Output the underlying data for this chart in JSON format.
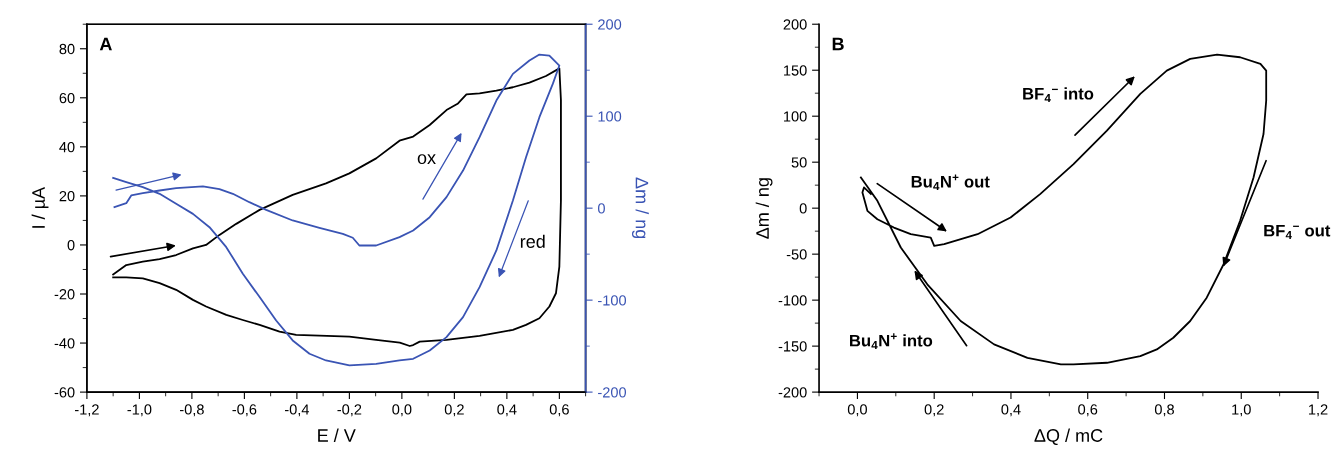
{
  "chart_data": [
    {
      "type": "line",
      "title": "A",
      "xlabel": "E / V",
      "ylabel": "I / µA",
      "y2label": "Δm / ng",
      "xlim": [
        -1.2,
        0.7
      ],
      "xticks": [
        {
          "value": -1.2,
          "label": "-1,2"
        },
        {
          "value": -1.0,
          "label": "-1,0"
        },
        {
          "value": -0.8,
          "label": "-0,8"
        },
        {
          "value": -0.6,
          "label": "-0,6"
        },
        {
          "value": -0.4,
          "label": "-0,4"
        },
        {
          "value": -0.2,
          "label": "-0,2"
        },
        {
          "value": 0.0,
          "label": "0,0"
        },
        {
          "value": 0.2,
          "label": "0,2"
        },
        {
          "value": 0.4,
          "label": "0,4"
        },
        {
          "value": 0.6,
          "label": "0,6"
        }
      ],
      "ylim": [
        -60,
        90
      ],
      "yticks": [
        -60,
        -40,
        -20,
        0,
        20,
        40,
        60,
        80
      ],
      "y2lim": [
        -200,
        200
      ],
      "y2ticks": [
        -200,
        -100,
        0,
        100,
        200
      ],
      "annotations": [
        "ox",
        "red"
      ],
      "series": [
        {
          "color": "#000000",
          "x": [
            -1.1,
            -1.05,
            -0.987,
            -0.923,
            -0.86,
            -0.796,
            -0.746,
            -0.695,
            -0.631,
            -0.542,
            -0.416,
            -0.289,
            -0.2,
            -0.098,
            -0.009,
            0.043,
            0.106,
            0.17,
            0.214,
            0.246,
            0.296,
            0.36,
            0.423,
            0.486,
            0.549,
            0.6,
            0.606,
            0.606,
            0.6,
            0.587,
            0.562,
            0.524,
            0.473,
            0.423,
            0.296,
            0.17,
            0.068,
            0.043,
            0.03,
            -0.008,
            -0.098,
            -0.2,
            -0.314,
            -0.403,
            -0.466,
            -0.542,
            -0.606,
            -0.669,
            -0.746,
            -0.796,
            -0.86,
            -0.923,
            -0.987,
            -1.05,
            -1.1
          ],
          "values": [
            -12,
            -8.2,
            -6.8,
            -5.8,
            -4.1,
            -1.4,
            0,
            4.1,
            8.6,
            14.3,
            20.4,
            25.1,
            29.2,
            35.3,
            42.5,
            44.2,
            48.9,
            55.0,
            57.7,
            61.4,
            61.8,
            62.9,
            64.3,
            66.2,
            68.9,
            72.0,
            59.1,
            18.3,
            -8.8,
            -19.7,
            -25.1,
            -29.9,
            -32.6,
            -34.6,
            -37.1,
            -38.7,
            -39.4,
            -40.8,
            -41.2,
            -39.8,
            -38.7,
            -37.4,
            -37.0,
            -36.7,
            -35.3,
            -32.6,
            -30.6,
            -28.5,
            -25.1,
            -22.4,
            -18.3,
            -15.6,
            -13.6,
            -13.2,
            -13.2
          ]
        },
        {
          "color": "#3a54b4",
          "axis": "y2",
          "x": [
            -1.095,
            -1.05,
            -1.031,
            -0.987,
            -0.923,
            -0.86,
            -0.758,
            -0.695,
            -0.644,
            -0.581,
            -0.517,
            -0.416,
            -0.314,
            -0.225,
            -0.187,
            -0.162,
            -0.098,
            -0.009,
            0.043,
            0.106,
            0.17,
            0.233,
            0.296,
            0.36,
            0.423,
            0.486,
            0.524,
            0.562,
            0.6,
            0.575,
            0.524,
            0.473,
            0.423,
            0.36,
            0.296,
            0.233,
            0.17,
            0.106,
            0.043,
            -0.009,
            -0.098,
            -0.2,
            -0.289,
            -0.352,
            -0.416,
            -0.479,
            -0.542,
            -0.606,
            -0.669,
            -0.733,
            -0.796,
            -0.86,
            -0.923,
            -0.987,
            -1.05,
            -1.1
          ],
          "values": [
            1.1,
            5.4,
            13.8,
            16.3,
            19.2,
            21.7,
            23.6,
            20.7,
            15.6,
            6.5,
            -1.8,
            -13.4,
            -21.4,
            -27.9,
            -32.2,
            -40.6,
            -40.6,
            -31.5,
            -24.3,
            -9.8,
            12.0,
            40.9,
            77.2,
            117.0,
            146.0,
            160.5,
            167.0,
            165.9,
            155.1,
            135.1,
            98.9,
            55.4,
            8.3,
            -46.0,
            -85.9,
            -118.5,
            -140.2,
            -154.7,
            -163.8,
            -165.6,
            -169.2,
            -171.0,
            -165.6,
            -158.3,
            -143.8,
            -122.1,
            -96.7,
            -71.4,
            -42.4,
            -20.7,
            -6.2,
            4.7,
            15.6,
            22.8,
            28.3,
            33.0
          ]
        }
      ]
    },
    {
      "type": "line",
      "title": "B",
      "xlabel": "ΔQ / mC",
      "ylabel": "Δm / ng",
      "xlim": [
        -0.1,
        1.2
      ],
      "xticks": [
        {
          "value": 0.0,
          "label": "0,0"
        },
        {
          "value": 0.2,
          "label": "0,2"
        },
        {
          "value": 0.4,
          "label": "0,4"
        },
        {
          "value": 0.6,
          "label": "0,6"
        },
        {
          "value": 0.8,
          "label": "0,8"
        },
        {
          "value": 1.0,
          "label": "1,0"
        },
        {
          "value": 1.2,
          "label": "1,2"
        }
      ],
      "ylim": [
        -200,
        200
      ],
      "yticks": [
        -200,
        -150,
        -100,
        -50,
        0,
        50,
        100,
        150,
        200
      ],
      "annotations": [
        "BF$_{4}$$^{−}$ into",
        "BF$_{4}$$^{−}$ out",
        "Bu$_{4}$N$^{+}$ out",
        "Bu$_{4}$N$^{+}$ into"
      ],
      "series": [
        {
          "color": "#000000",
          "x": [
            0.009,
            0.052,
            0.113,
            0.182,
            0.269,
            0.356,
            0.443,
            0.53,
            0.563,
            0.65,
            0.737,
            0.78,
            0.823,
            0.867,
            0.91,
            0.954,
            0.997,
            1.032,
            1.058,
            1.065,
            1.065,
            1.05,
            0.997,
            0.937,
            0.867,
            0.806,
            0.737,
            0.65,
            0.563,
            0.476,
            0.399,
            0.313,
            0.226,
            0.2,
            0.191,
            0.139,
            0.095,
            0.052,
            0.026,
            0.013,
            0.017,
            0.035
          ],
          "values": [
            33.4,
            8.0,
            -42.8,
            -82.8,
            -122.7,
            -148.1,
            -162.7,
            -169.9,
            -169.9,
            -168.1,
            -160.9,
            -153.6,
            -140.9,
            -122.7,
            -97.3,
            -61.0,
            -13.8,
            33.4,
            80.6,
            116.9,
            149.6,
            156.9,
            164.1,
            167.0,
            162.3,
            149.6,
            124.2,
            84.2,
            47.9,
            15.3,
            -10.2,
            -28.3,
            -39.2,
            -41.0,
            -32.0,
            -28.3,
            -21.1,
            -12.0,
            -2.9,
            17.1,
            22.5,
            15.3
          ]
        }
      ]
    }
  ]
}
